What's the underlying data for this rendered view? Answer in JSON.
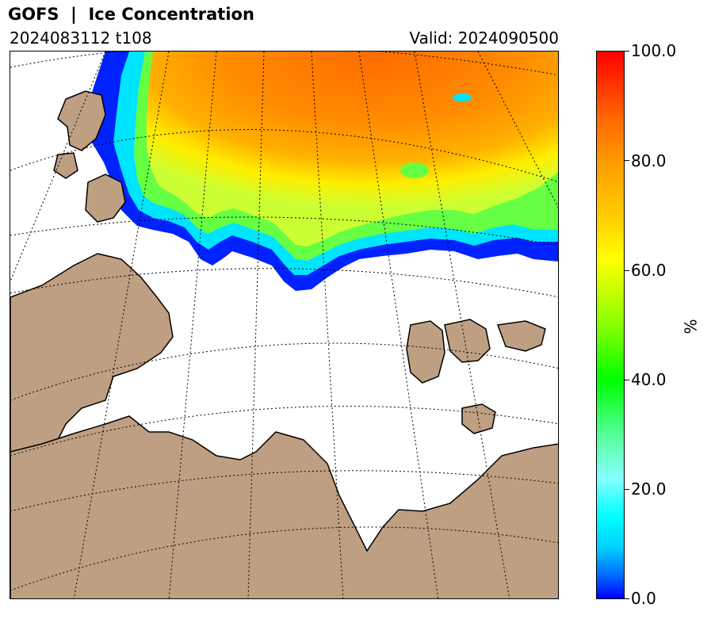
{
  "header": {
    "title": "GOFS  |  Ice Concentration",
    "run": "2024083112 t108",
    "valid": "Valid: 2024090500"
  },
  "colorbar": {
    "unit": "%",
    "ticks": [
      "100.0",
      "80.0",
      "60.0",
      "40.0",
      "20.0",
      "0.0"
    ],
    "range": [
      0,
      100
    ],
    "colors": [
      "#0000ff",
      "#00ffff",
      "#00ff00",
      "#ffff00",
      "#ff9900",
      "#ff0000"
    ]
  },
  "map": {
    "land_color": "#bf9f82",
    "ocean_color": "#ffffff",
    "coastline_color": "#000000",
    "graticule_style": "dotted"
  }
}
